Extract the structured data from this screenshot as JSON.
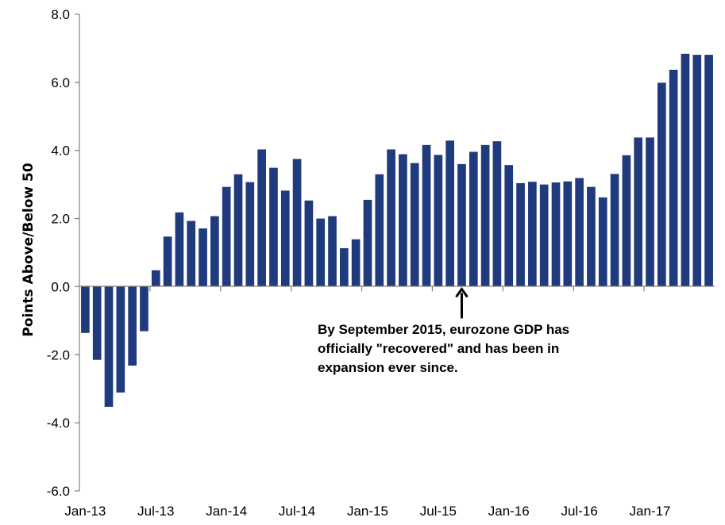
{
  "chart_data": {
    "type": "bar",
    "ylabel": "Points Above/Below 50",
    "ylim": [
      -6,
      8
    ],
    "yticks": [
      "8.0",
      "6.0",
      "4.0",
      "2.0",
      "0.0",
      "-2.0",
      "-4.0",
      "-6.0"
    ],
    "xtick_labels": [
      "Jan-13",
      "Jul-13",
      "Jan-14",
      "Jul-14",
      "Jan-15",
      "Jul-15",
      "Jan-16",
      "Jul-16",
      "Jan-17"
    ],
    "bar_color": "#1f3a7d",
    "categories": [
      "Jan-13",
      "Feb-13",
      "Mar-13",
      "Apr-13",
      "May-13",
      "Jun-13",
      "Jul-13",
      "Aug-13",
      "Sep-13",
      "Oct-13",
      "Nov-13",
      "Dec-13",
      "Jan-14",
      "Feb-14",
      "Mar-14",
      "Apr-14",
      "May-14",
      "Jun-14",
      "Jul-14",
      "Aug-14",
      "Sep-14",
      "Oct-14",
      "Nov-14",
      "Dec-14",
      "Jan-15",
      "Feb-15",
      "Mar-15",
      "Apr-15",
      "May-15",
      "Jun-15",
      "Jul-15",
      "Aug-15",
      "Sep-15",
      "Oct-15",
      "Nov-15",
      "Dec-15",
      "Jan-16",
      "Feb-16",
      "Mar-16",
      "Apr-16",
      "May-16",
      "Jun-16",
      "Jul-16",
      "Aug-16",
      "Sep-16",
      "Oct-16",
      "Nov-16",
      "Dec-16",
      "Jan-17",
      "Feb-17",
      "Mar-17",
      "Apr-17",
      "May-17",
      "Jun-17"
    ],
    "values": [
      -1.36,
      -2.15,
      -3.53,
      -3.11,
      -2.32,
      -1.31,
      0.48,
      1.47,
      2.18,
      1.93,
      1.71,
      2.07,
      2.93,
      3.3,
      3.07,
      4.03,
      3.49,
      2.82,
      3.75,
      2.53,
      2.0,
      2.07,
      1.13,
      1.39,
      2.55,
      3.3,
      4.03,
      3.89,
      3.63,
      4.16,
      3.87,
      4.29,
      3.6,
      3.96,
      4.16,
      4.27,
      3.57,
      3.04,
      3.08,
      3.0,
      3.06,
      3.09,
      3.19,
      2.93,
      2.62,
      3.31,
      3.86,
      4.38,
      4.38,
      5.99,
      6.37,
      6.84,
      6.81,
      6.81
    ],
    "annotation": {
      "lines": [
        "By September 2015, eurozone GDP has",
        "officially \"recovered\" and has been in",
        "expansion ever since."
      ],
      "target_category": "Sep-15"
    }
  }
}
